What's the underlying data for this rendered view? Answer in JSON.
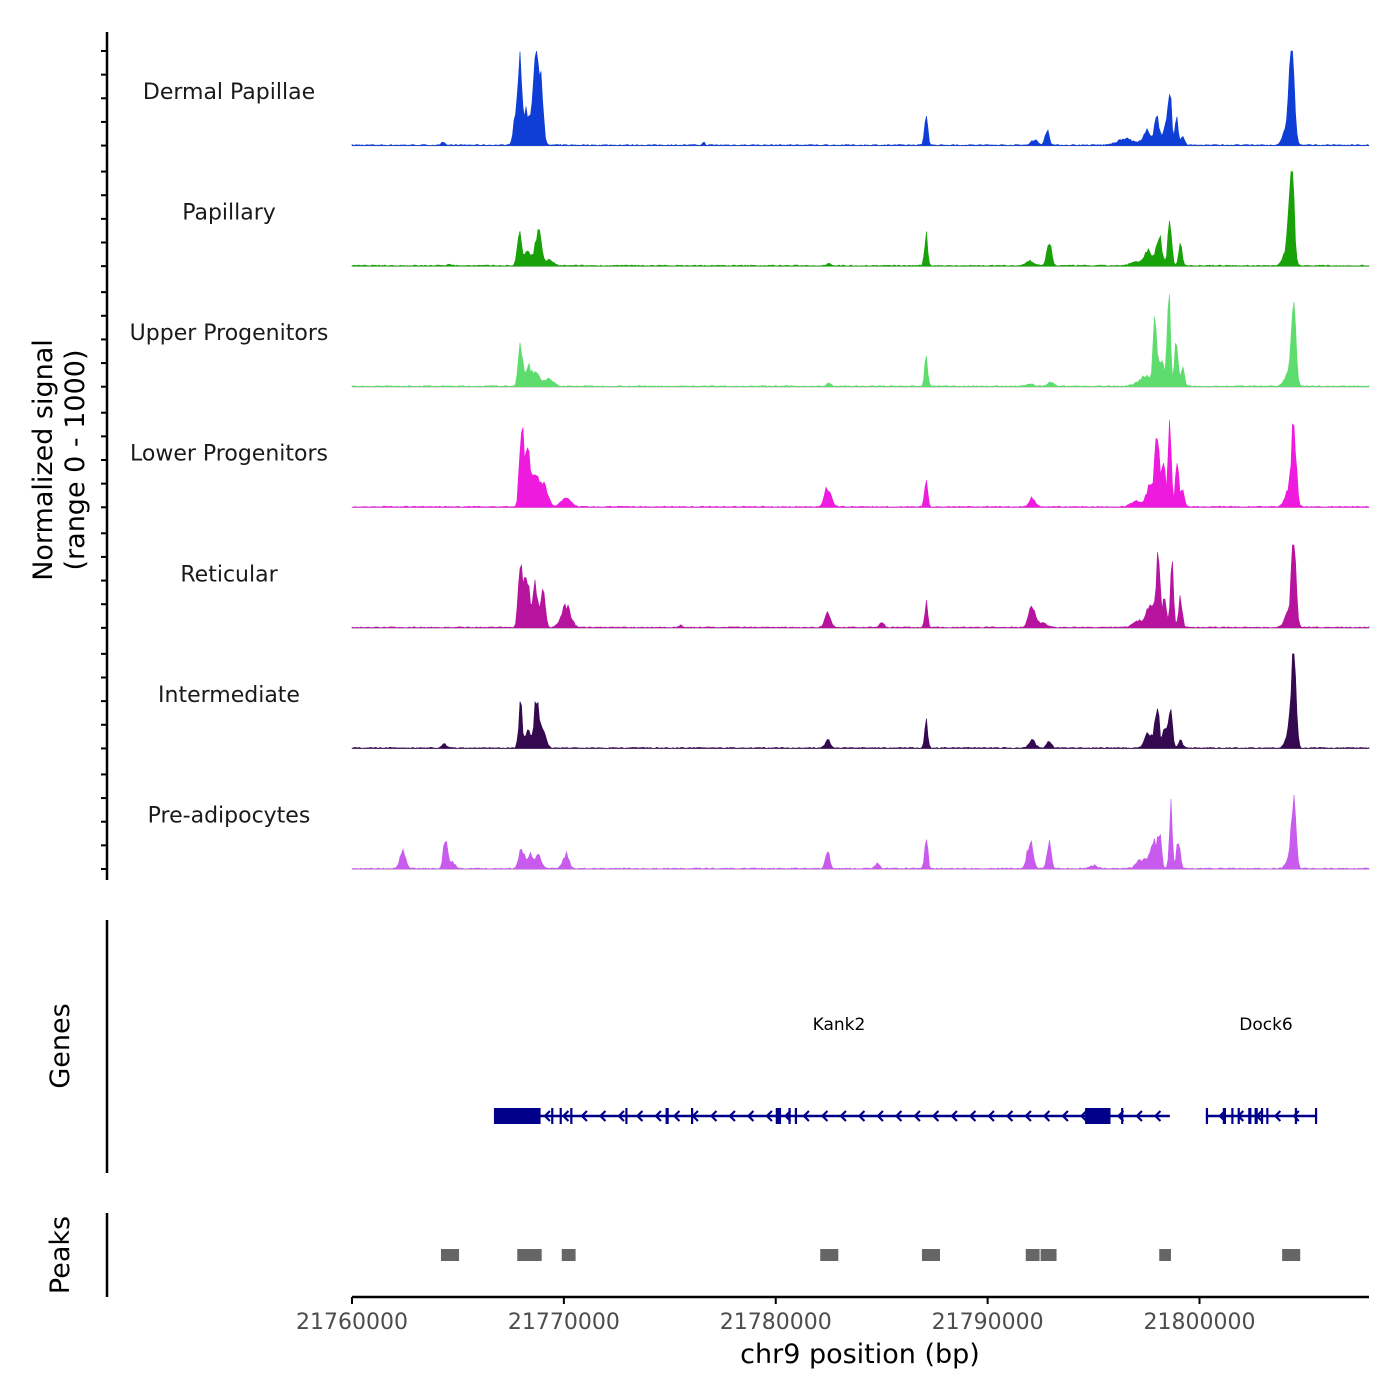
{
  "chart_data": {
    "type": "area",
    "title": "",
    "xlabel": "chr9 position (bp)",
    "ylabel_line1": "Normalized signal",
    "ylabel_line2": "(range 0 - 1000)",
    "xlim": [
      21760000,
      21808000
    ],
    "ylim": [
      0,
      1000
    ],
    "x_ticks": [
      21760000,
      21770000,
      21780000,
      21790000,
      21800000
    ],
    "x_tick_labels": [
      "21760000",
      "21770000",
      "21780000",
      "21790000",
      "21800000"
    ],
    "series": [
      {
        "name": "Dermal Papillae",
        "color": "#0f3ed6",
        "peaks": [
          [
            21764300,
            0.03,
            60
          ],
          [
            21767700,
            0.25,
            90
          ],
          [
            21767900,
            0.72,
            80
          ],
          [
            21768200,
            0.35,
            150
          ],
          [
            21768650,
            0.85,
            110
          ],
          [
            21768900,
            0.72,
            90
          ],
          [
            21776600,
            0.03,
            40
          ],
          [
            21787100,
            0.38,
            60
          ],
          [
            21792200,
            0.06,
            120
          ],
          [
            21792800,
            0.16,
            80
          ],
          [
            21796500,
            0.07,
            300
          ],
          [
            21797500,
            0.14,
            150
          ],
          [
            21798000,
            0.28,
            100
          ],
          [
            21798400,
            0.22,
            90
          ],
          [
            21798600,
            0.62,
            60
          ],
          [
            21798900,
            0.3,
            60
          ],
          [
            21799200,
            0.08,
            80
          ],
          [
            21804350,
            0.9,
            100
          ],
          [
            21804150,
            0.2,
            150
          ]
        ]
      },
      {
        "name": "Papillary",
        "color": "#18a108",
        "peaks": [
          [
            21764600,
            0.02,
            80
          ],
          [
            21767900,
            0.35,
            80
          ],
          [
            21768300,
            0.14,
            150
          ],
          [
            21768800,
            0.38,
            110
          ],
          [
            21769300,
            0.06,
            150
          ],
          [
            21782500,
            0.03,
            80
          ],
          [
            21787100,
            0.33,
            60
          ],
          [
            21792000,
            0.05,
            150
          ],
          [
            21792900,
            0.26,
            90
          ],
          [
            21797000,
            0.04,
            200
          ],
          [
            21797600,
            0.15,
            150
          ],
          [
            21798100,
            0.3,
            110
          ],
          [
            21798600,
            0.55,
            70
          ],
          [
            21799100,
            0.22,
            70
          ],
          [
            21804350,
            1.0,
            90
          ],
          [
            21804150,
            0.2,
            150
          ]
        ]
      },
      {
        "name": "Upper Progenitors",
        "color": "#5edc6e",
        "peaks": [
          [
            21767950,
            0.42,
            80
          ],
          [
            21768300,
            0.2,
            130
          ],
          [
            21768700,
            0.13,
            150
          ],
          [
            21769300,
            0.07,
            180
          ],
          [
            21782500,
            0.03,
            80
          ],
          [
            21787100,
            0.32,
            60
          ],
          [
            21792000,
            0.03,
            120
          ],
          [
            21793000,
            0.04,
            120
          ],
          [
            21797500,
            0.1,
            300
          ],
          [
            21797900,
            0.72,
            70
          ],
          [
            21798200,
            0.3,
            90
          ],
          [
            21798550,
            0.98,
            60
          ],
          [
            21798900,
            0.55,
            60
          ],
          [
            21799200,
            0.2,
            70
          ],
          [
            21804450,
            0.92,
            85
          ],
          [
            21804200,
            0.12,
            150
          ]
        ]
      },
      {
        "name": "Lower Progenitors",
        "color": "#ee1ade",
        "peaks": [
          [
            21768000,
            0.85,
            80
          ],
          [
            21768300,
            0.6,
            120
          ],
          [
            21768700,
            0.33,
            120
          ],
          [
            21769100,
            0.22,
            130
          ],
          [
            21770100,
            0.1,
            190
          ],
          [
            21782450,
            0.2,
            130
          ],
          [
            21787100,
            0.3,
            60
          ],
          [
            21792100,
            0.1,
            120
          ],
          [
            21797000,
            0.06,
            200
          ],
          [
            21797700,
            0.25,
            150
          ],
          [
            21798000,
            0.82,
            70
          ],
          [
            21798300,
            0.45,
            80
          ],
          [
            21798600,
            0.83,
            60
          ],
          [
            21798950,
            0.55,
            60
          ],
          [
            21799200,
            0.2,
            70
          ],
          [
            21804450,
            0.85,
            90
          ],
          [
            21804200,
            0.15,
            150
          ]
        ]
      },
      {
        "name": "Reticular",
        "color": "#b6139e",
        "peaks": [
          [
            21767950,
            0.7,
            80
          ],
          [
            21768250,
            0.55,
            110
          ],
          [
            21768650,
            0.45,
            90
          ],
          [
            21769000,
            0.4,
            90
          ],
          [
            21770100,
            0.22,
            180
          ],
          [
            21775500,
            0.02,
            80
          ],
          [
            21782450,
            0.15,
            110
          ],
          [
            21785000,
            0.05,
            90
          ],
          [
            21787100,
            0.25,
            60
          ],
          [
            21792100,
            0.23,
            130
          ],
          [
            21792600,
            0.05,
            150
          ],
          [
            21797100,
            0.07,
            200
          ],
          [
            21797700,
            0.25,
            150
          ],
          [
            21798050,
            0.7,
            70
          ],
          [
            21798350,
            0.3,
            80
          ],
          [
            21798700,
            0.7,
            60
          ],
          [
            21799100,
            0.3,
            70
          ],
          [
            21804450,
            1.0,
            85
          ],
          [
            21804200,
            0.15,
            150
          ]
        ]
      },
      {
        "name": "Intermediate",
        "color": "#34094f",
        "peaks": [
          [
            21764350,
            0.04,
            80
          ],
          [
            21767950,
            0.43,
            70
          ],
          [
            21768300,
            0.2,
            110
          ],
          [
            21768700,
            0.5,
            80
          ],
          [
            21769000,
            0.2,
            120
          ],
          [
            21782450,
            0.1,
            90
          ],
          [
            21787100,
            0.27,
            60
          ],
          [
            21792100,
            0.08,
            120
          ],
          [
            21792900,
            0.08,
            90
          ],
          [
            21797600,
            0.15,
            150
          ],
          [
            21798000,
            0.42,
            80
          ],
          [
            21798400,
            0.25,
            90
          ],
          [
            21798650,
            0.47,
            60
          ],
          [
            21799100,
            0.08,
            90
          ],
          [
            21804450,
            1.0,
            85
          ],
          [
            21804250,
            0.2,
            140
          ]
        ]
      },
      {
        "name": "Pre-adipocytes",
        "color": "#c85aee",
        "peaks": [
          [
            21762400,
            0.18,
            110
          ],
          [
            21764400,
            0.28,
            80
          ],
          [
            21764700,
            0.08,
            120
          ],
          [
            21768000,
            0.2,
            100
          ],
          [
            21768400,
            0.15,
            120
          ],
          [
            21768800,
            0.13,
            120
          ],
          [
            21770100,
            0.15,
            120
          ],
          [
            21782450,
            0.2,
            80
          ],
          [
            21784800,
            0.06,
            80
          ],
          [
            21787100,
            0.35,
            60
          ],
          [
            21792000,
            0.28,
            110
          ],
          [
            21792900,
            0.28,
            80
          ],
          [
            21795000,
            0.03,
            150
          ],
          [
            21797300,
            0.1,
            200
          ],
          [
            21797800,
            0.28,
            110
          ],
          [
            21798100,
            0.35,
            80
          ],
          [
            21798650,
            0.65,
            60
          ],
          [
            21799000,
            0.3,
            70
          ],
          [
            21804450,
            0.7,
            80
          ],
          [
            21804300,
            0.15,
            140
          ]
        ]
      }
    ],
    "genes": [
      {
        "name": "Kank2",
        "start": 21766700,
        "end": 21798600,
        "strand": "-",
        "exons": [
          [
            21766700,
            21768900
          ],
          [
            21769400,
            21769500
          ],
          [
            21769800,
            21769900
          ],
          [
            21770300,
            21770350
          ],
          [
            21772900,
            21772950
          ],
          [
            21774800,
            21774950
          ],
          [
            21776000,
            21776050
          ],
          [
            21780000,
            21780250
          ],
          [
            21780600,
            21780700
          ],
          [
            21780900,
            21780950
          ],
          [
            21794600,
            21795800
          ],
          [
            21796300,
            21796350
          ]
        ]
      },
      {
        "name": "Dock6",
        "start": 21800300,
        "end": 21805500,
        "strand": "-",
        "exons": [
          [
            21800300,
            21800400
          ],
          [
            21801100,
            21801250
          ],
          [
            21801500,
            21801600
          ],
          [
            21801800,
            21801900
          ],
          [
            21802300,
            21802450
          ],
          [
            21802600,
            21802750
          ],
          [
            21802900,
            21803000
          ],
          [
            21803150,
            21803250
          ],
          [
            21804500,
            21804600
          ],
          [
            21805450,
            21805500
          ]
        ]
      }
    ],
    "peaks_track": [
      [
        21764200,
        21765100
      ],
      [
        21767800,
        21769000
      ],
      [
        21769900,
        21770600
      ],
      [
        21782100,
        21783000
      ],
      [
        21786900,
        21787800
      ],
      [
        21791800,
        21792500
      ],
      [
        21792500,
        21793300
      ],
      [
        21798100,
        21798700
      ],
      [
        21803900,
        21804800
      ]
    ],
    "panel_labels": {
      "genes": "Genes",
      "peaks": "Peaks"
    }
  }
}
